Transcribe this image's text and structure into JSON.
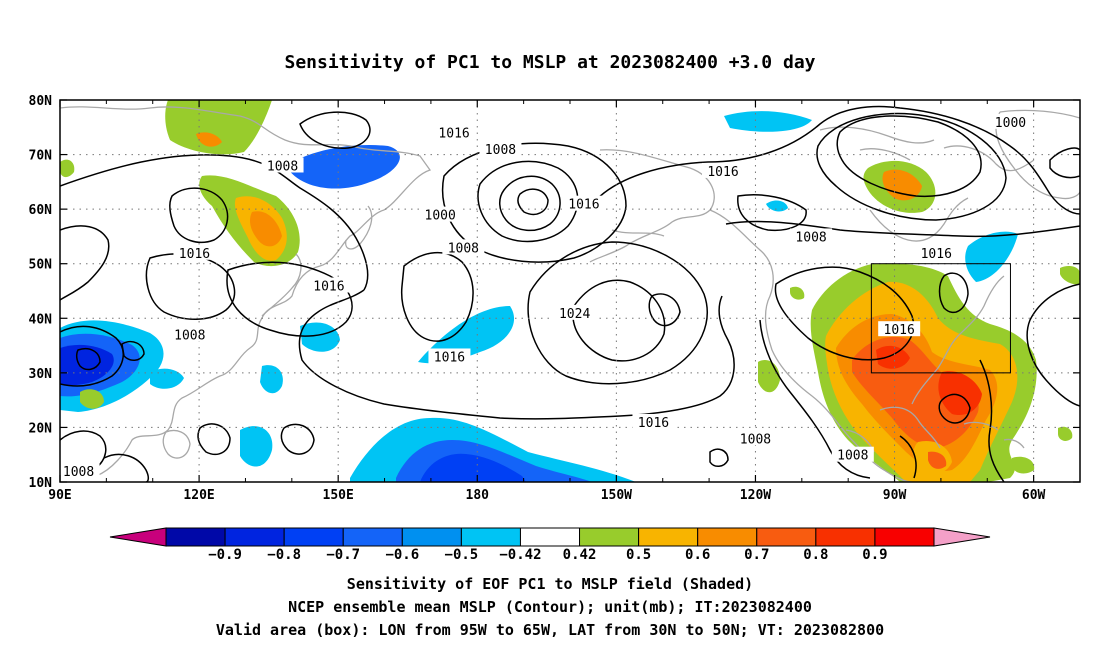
{
  "title": "Sensitivity of PC1 to MSLP at 2023082400 +3.0 day",
  "map": {
    "lon_labels": [
      "90E",
      "120E",
      "150E",
      "180",
      "150W",
      "120W",
      "90W",
      "60W"
    ],
    "lat_labels": [
      "10N",
      "20N",
      "30N",
      "40N",
      "50N",
      "60N",
      "70N",
      "80N"
    ],
    "lon_range_east": [
      90,
      310
    ],
    "lat_range": [
      10,
      80
    ],
    "valid_box": {
      "lon_w": 265,
      "lon_e": 295,
      "lat_s": 30,
      "lat_n": 50
    },
    "contour_labels": [
      {
        "text": "1016",
        "lon": 175,
        "lat": 74
      },
      {
        "text": "1008",
        "lon": 185,
        "lat": 71
      },
      {
        "text": "1016",
        "lon": 233,
        "lat": 67
      },
      {
        "text": "1000",
        "lon": 295,
        "lat": 76
      },
      {
        "text": "1008",
        "lon": 138,
        "lat": 68
      },
      {
        "text": "1016",
        "lon": 119,
        "lat": 52
      },
      {
        "text": "1000",
        "lon": 172,
        "lat": 59
      },
      {
        "text": "1016",
        "lon": 203,
        "lat": 61
      },
      {
        "text": "1008",
        "lon": 177,
        "lat": 53
      },
      {
        "text": "1016",
        "lon": 279,
        "lat": 52
      },
      {
        "text": "1008",
        "lon": 252,
        "lat": 55
      },
      {
        "text": "1016",
        "lon": 148,
        "lat": 46
      },
      {
        "text": "1024",
        "lon": 201,
        "lat": 41
      },
      {
        "text": "1016",
        "lon": 271,
        "lat": 38
      },
      {
        "text": "1008",
        "lon": 118,
        "lat": 37
      },
      {
        "text": "1016",
        "lon": 174,
        "lat": 33
      },
      {
        "text": "1016",
        "lon": 218,
        "lat": 21
      },
      {
        "text": "1008",
        "lon": 240,
        "lat": 18
      },
      {
        "text": "1008",
        "lon": 261,
        "lat": 15
      },
      {
        "text": "1008",
        "lon": 94,
        "lat": 12
      }
    ]
  },
  "colorbar": {
    "colors": [
      "#c8007c",
      "#0008a8",
      "#0024e0",
      "#0040f4",
      "#1464f8",
      "#0090f0",
      "#00c4f4",
      "#ffffff",
      "#98cc2c",
      "#f8b400",
      "#f88c00",
      "#f85c10",
      "#f83000",
      "#f80000",
      "#f4a0c8"
    ],
    "labels": [
      "-0.9",
      "-0.8",
      "-0.7",
      "-0.6",
      "-0.5",
      "-0.42",
      "0.42",
      "0.5",
      "0.6",
      "0.7",
      "0.8",
      "0.9"
    ]
  },
  "captions": [
    "Sensitivity of EOF PC1 to MSLP field (Shaded)",
    "NCEP ensemble mean MSLP (Contour); unit(mb); IT:2023082400",
    "Valid area (box): LON from 95W to 65W, LAT from 30N to 50N; VT: 2023082800"
  ]
}
